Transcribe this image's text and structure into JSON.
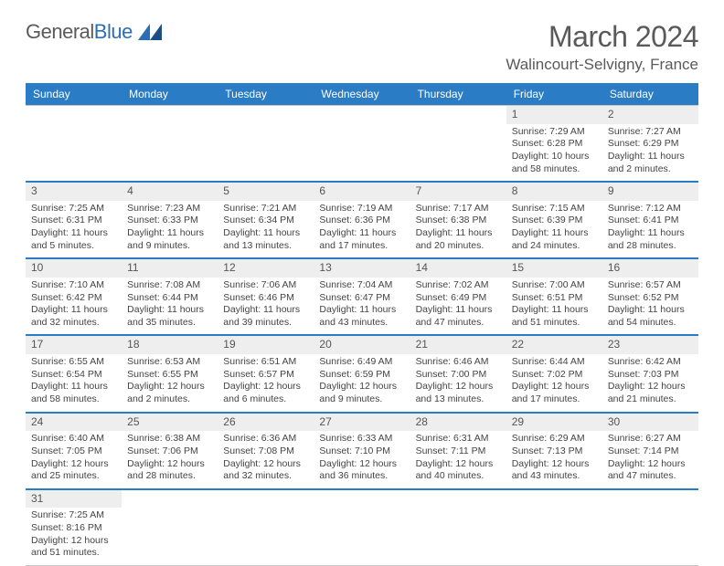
{
  "logo": {
    "word1": "General",
    "word2": "Blue"
  },
  "header": {
    "month": "March 2024",
    "location": "Walincourt-Selvigny, France"
  },
  "colors": {
    "accent": "#2a7cc4",
    "text": "#444444",
    "daystrip": "#eeeeee"
  },
  "dayNames": [
    "Sunday",
    "Monday",
    "Tuesday",
    "Wednesday",
    "Thursday",
    "Friday",
    "Saturday"
  ],
  "weeks": [
    [
      null,
      null,
      null,
      null,
      null,
      {
        "n": "1",
        "sr": "Sunrise: 7:29 AM",
        "ss": "Sunset: 6:28 PM",
        "dl": "Daylight: 10 hours and 58 minutes."
      },
      {
        "n": "2",
        "sr": "Sunrise: 7:27 AM",
        "ss": "Sunset: 6:29 PM",
        "dl": "Daylight: 11 hours and 2 minutes."
      }
    ],
    [
      {
        "n": "3",
        "sr": "Sunrise: 7:25 AM",
        "ss": "Sunset: 6:31 PM",
        "dl": "Daylight: 11 hours and 5 minutes."
      },
      {
        "n": "4",
        "sr": "Sunrise: 7:23 AM",
        "ss": "Sunset: 6:33 PM",
        "dl": "Daylight: 11 hours and 9 minutes."
      },
      {
        "n": "5",
        "sr": "Sunrise: 7:21 AM",
        "ss": "Sunset: 6:34 PM",
        "dl": "Daylight: 11 hours and 13 minutes."
      },
      {
        "n": "6",
        "sr": "Sunrise: 7:19 AM",
        "ss": "Sunset: 6:36 PM",
        "dl": "Daylight: 11 hours and 17 minutes."
      },
      {
        "n": "7",
        "sr": "Sunrise: 7:17 AM",
        "ss": "Sunset: 6:38 PM",
        "dl": "Daylight: 11 hours and 20 minutes."
      },
      {
        "n": "8",
        "sr": "Sunrise: 7:15 AM",
        "ss": "Sunset: 6:39 PM",
        "dl": "Daylight: 11 hours and 24 minutes."
      },
      {
        "n": "9",
        "sr": "Sunrise: 7:12 AM",
        "ss": "Sunset: 6:41 PM",
        "dl": "Daylight: 11 hours and 28 minutes."
      }
    ],
    [
      {
        "n": "10",
        "sr": "Sunrise: 7:10 AM",
        "ss": "Sunset: 6:42 PM",
        "dl": "Daylight: 11 hours and 32 minutes."
      },
      {
        "n": "11",
        "sr": "Sunrise: 7:08 AM",
        "ss": "Sunset: 6:44 PM",
        "dl": "Daylight: 11 hours and 35 minutes."
      },
      {
        "n": "12",
        "sr": "Sunrise: 7:06 AM",
        "ss": "Sunset: 6:46 PM",
        "dl": "Daylight: 11 hours and 39 minutes."
      },
      {
        "n": "13",
        "sr": "Sunrise: 7:04 AM",
        "ss": "Sunset: 6:47 PM",
        "dl": "Daylight: 11 hours and 43 minutes."
      },
      {
        "n": "14",
        "sr": "Sunrise: 7:02 AM",
        "ss": "Sunset: 6:49 PM",
        "dl": "Daylight: 11 hours and 47 minutes."
      },
      {
        "n": "15",
        "sr": "Sunrise: 7:00 AM",
        "ss": "Sunset: 6:51 PM",
        "dl": "Daylight: 11 hours and 51 minutes."
      },
      {
        "n": "16",
        "sr": "Sunrise: 6:57 AM",
        "ss": "Sunset: 6:52 PM",
        "dl": "Daylight: 11 hours and 54 minutes."
      }
    ],
    [
      {
        "n": "17",
        "sr": "Sunrise: 6:55 AM",
        "ss": "Sunset: 6:54 PM",
        "dl": "Daylight: 11 hours and 58 minutes."
      },
      {
        "n": "18",
        "sr": "Sunrise: 6:53 AM",
        "ss": "Sunset: 6:55 PM",
        "dl": "Daylight: 12 hours and 2 minutes."
      },
      {
        "n": "19",
        "sr": "Sunrise: 6:51 AM",
        "ss": "Sunset: 6:57 PM",
        "dl": "Daylight: 12 hours and 6 minutes."
      },
      {
        "n": "20",
        "sr": "Sunrise: 6:49 AM",
        "ss": "Sunset: 6:59 PM",
        "dl": "Daylight: 12 hours and 9 minutes."
      },
      {
        "n": "21",
        "sr": "Sunrise: 6:46 AM",
        "ss": "Sunset: 7:00 PM",
        "dl": "Daylight: 12 hours and 13 minutes."
      },
      {
        "n": "22",
        "sr": "Sunrise: 6:44 AM",
        "ss": "Sunset: 7:02 PM",
        "dl": "Daylight: 12 hours and 17 minutes."
      },
      {
        "n": "23",
        "sr": "Sunrise: 6:42 AM",
        "ss": "Sunset: 7:03 PM",
        "dl": "Daylight: 12 hours and 21 minutes."
      }
    ],
    [
      {
        "n": "24",
        "sr": "Sunrise: 6:40 AM",
        "ss": "Sunset: 7:05 PM",
        "dl": "Daylight: 12 hours and 25 minutes."
      },
      {
        "n": "25",
        "sr": "Sunrise: 6:38 AM",
        "ss": "Sunset: 7:06 PM",
        "dl": "Daylight: 12 hours and 28 minutes."
      },
      {
        "n": "26",
        "sr": "Sunrise: 6:36 AM",
        "ss": "Sunset: 7:08 PM",
        "dl": "Daylight: 12 hours and 32 minutes."
      },
      {
        "n": "27",
        "sr": "Sunrise: 6:33 AM",
        "ss": "Sunset: 7:10 PM",
        "dl": "Daylight: 12 hours and 36 minutes."
      },
      {
        "n": "28",
        "sr": "Sunrise: 6:31 AM",
        "ss": "Sunset: 7:11 PM",
        "dl": "Daylight: 12 hours and 40 minutes."
      },
      {
        "n": "29",
        "sr": "Sunrise: 6:29 AM",
        "ss": "Sunset: 7:13 PM",
        "dl": "Daylight: 12 hours and 43 minutes."
      },
      {
        "n": "30",
        "sr": "Sunrise: 6:27 AM",
        "ss": "Sunset: 7:14 PM",
        "dl": "Daylight: 12 hours and 47 minutes."
      }
    ],
    [
      {
        "n": "31",
        "sr": "Sunrise: 7:25 AM",
        "ss": "Sunset: 8:16 PM",
        "dl": "Daylight: 12 hours and 51 minutes."
      },
      null,
      null,
      null,
      null,
      null,
      null
    ]
  ]
}
